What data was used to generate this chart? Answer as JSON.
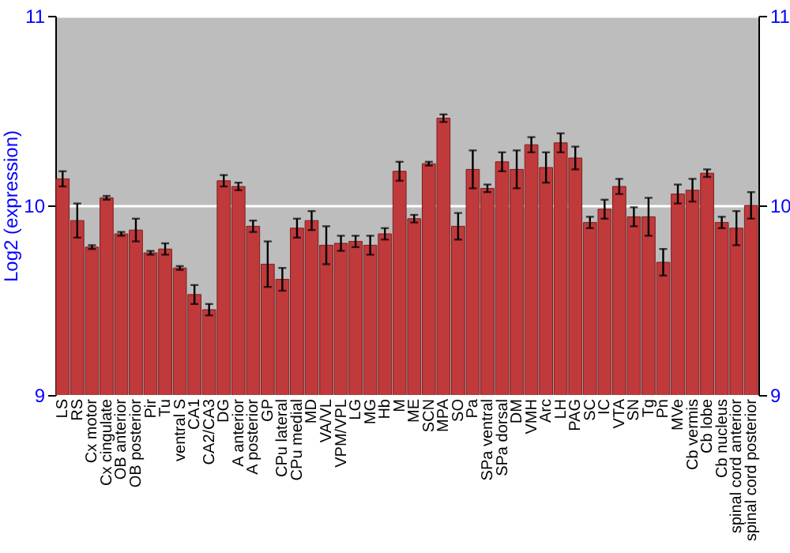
{
  "chart_data": {
    "type": "bar",
    "ylabel": "Log2 (expression)",
    "categories": [
      "LS",
      "RS",
      "Cx motor",
      "Cx cingulate",
      "OB anterior",
      "OB posterior",
      "Pir",
      "Tu",
      "ventral S",
      "CA1",
      "CA2/CA3",
      "DG",
      "A anterior",
      "A posterior",
      "GP",
      "CPu lateral",
      "CPu medial",
      "MD",
      "VA/VL",
      "VPM/VPL",
      "LG",
      "MG",
      "Hb",
      "M",
      "ME",
      "SCN",
      "MPA",
      "SO",
      "Pa",
      "SPa ventral",
      "SPa dorsal",
      "DM",
      "VMH",
      "Arc",
      "LH",
      "PAG",
      "SC",
      "IC",
      "VTA",
      "SN",
      "Tg",
      "Pn",
      "MVe",
      "Cb vermis",
      "Cb lobe",
      "Cb nucleus",
      "spinal cord anterior",
      "spinal cord posterior"
    ],
    "values": [
      10.14,
      9.92,
      9.78,
      10.04,
      9.85,
      9.87,
      9.75,
      9.77,
      9.67,
      9.53,
      9.45,
      10.13,
      10.1,
      9.89,
      9.69,
      9.61,
      9.88,
      9.92,
      9.79,
      9.8,
      9.81,
      9.79,
      9.85,
      10.18,
      9.93,
      10.22,
      10.46,
      9.89,
      10.19,
      10.09,
      10.23,
      10.19,
      10.32,
      10.2,
      10.33,
      10.25,
      9.91,
      9.98,
      10.1,
      9.94,
      9.94,
      9.7,
      10.06,
      10.08,
      10.17,
      9.91,
      9.88,
      10.0
    ],
    "errors": [
      0.04,
      0.09,
      0.01,
      0.01,
      0.01,
      0.06,
      0.01,
      0.03,
      0.01,
      0.05,
      0.03,
      0.03,
      0.02,
      0.03,
      0.12,
      0.06,
      0.05,
      0.05,
      0.1,
      0.04,
      0.03,
      0.05,
      0.03,
      0.05,
      0.02,
      0.01,
      0.02,
      0.07,
      0.1,
      0.02,
      0.05,
      0.1,
      0.04,
      0.08,
      0.05,
      0.06,
      0.03,
      0.05,
      0.04,
      0.05,
      0.1,
      0.07,
      0.05,
      0.06,
      0.02,
      0.03,
      0.09,
      0.07
    ],
    "color": "#c0393b",
    "ylim": [
      9,
      11
    ],
    "yticks": [
      9,
      10,
      11
    ],
    "y2lim": [
      9,
      11
    ],
    "y2ticks": [
      9,
      10,
      11
    ],
    "grid": "y",
    "legend": false
  }
}
